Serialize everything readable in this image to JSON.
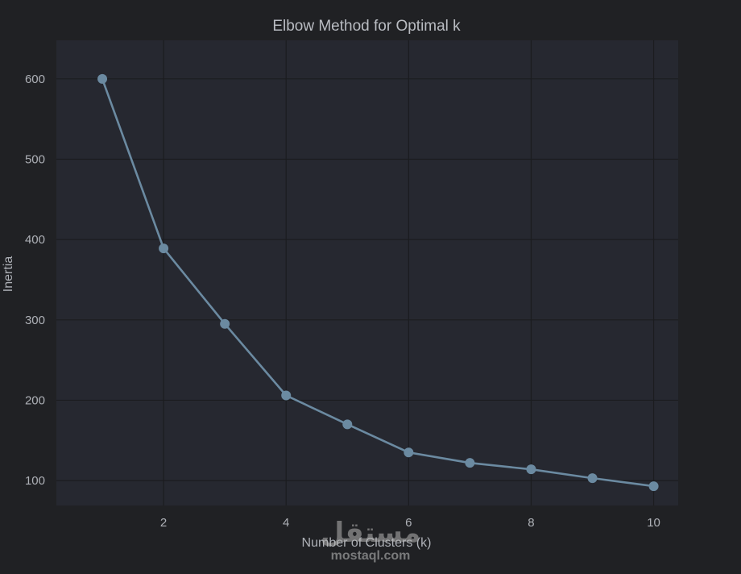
{
  "chart_data": {
    "type": "line",
    "title": "Elbow Method for Optimal k",
    "xlabel": "Number of Clusters (k)",
    "ylabel": "Inertia",
    "x": [
      1,
      2,
      3,
      4,
      5,
      6,
      7,
      8,
      9,
      10
    ],
    "series": [
      {
        "values": [
          600,
          389,
          295,
          206,
          170,
          135,
          122,
          114,
          103,
          93
        ]
      }
    ],
    "xlim": [
      0.25,
      10.4
    ],
    "ylim": [
      69,
      648
    ],
    "xticks": [
      2,
      4,
      6,
      8,
      10
    ],
    "yticks": [
      100,
      200,
      300,
      400,
      500,
      600
    ],
    "grid": true,
    "markers": true,
    "colors": {
      "figure_bg": "#202124",
      "plot_bg": "#262830",
      "grid": "#1b1c1f",
      "line": "#6b8aa1",
      "text": "#aeb1b7"
    }
  },
  "watermark": {
    "arabic": "مستقل",
    "url": "mostaql.com"
  }
}
